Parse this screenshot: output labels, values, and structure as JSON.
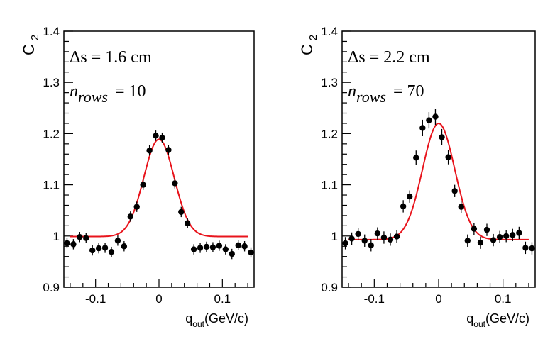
{
  "colors": {
    "fit": "#e8141c",
    "marker": "#000000",
    "frame": "#000000"
  },
  "chart_data": [
    {
      "type": "scatter",
      "title": "",
      "ylabel_main": "C",
      "ylabel_sub": "2",
      "xlabel_main": "q",
      "xlabel_sub": "out",
      "xlabel_unit": "(GeV/c)",
      "annotation_line1": "Δs = 1.6 cm",
      "annotation_n_main": "n",
      "annotation_n_sub": "rows",
      "annotation_n_value": "= 10",
      "xlim": [
        -0.15,
        0.15
      ],
      "ylim": [
        0.9,
        1.4
      ],
      "xticks": [
        -0.1,
        0,
        0.1
      ],
      "xtick_labels": [
        "-0.1",
        "0",
        "0.1"
      ],
      "yticks": [
        0.9,
        1.0,
        1.1,
        1.2,
        1.3,
        1.4
      ],
      "ytick_labels": [
        "0.9",
        "1",
        "1.1",
        "1.2",
        "1.3",
        "1.4"
      ],
      "series": [
        {
          "name": "data",
          "x": [
            -0.145,
            -0.135,
            -0.125,
            -0.115,
            -0.105,
            -0.095,
            -0.085,
            -0.075,
            -0.065,
            -0.055,
            -0.045,
            -0.035,
            -0.025,
            -0.015,
            -0.005,
            0.005,
            0.015,
            0.025,
            0.035,
            0.045,
            0.055,
            0.065,
            0.075,
            0.085,
            0.095,
            0.105,
            0.115,
            0.125,
            0.135,
            0.145
          ],
          "y": [
            0.986,
            0.984,
            0.998,
            0.996,
            0.972,
            0.976,
            0.977,
            0.969,
            0.991,
            0.98,
            1.038,
            1.057,
            1.1,
            1.167,
            1.196,
            1.192,
            1.168,
            1.103,
            1.047,
            1.025,
            0.974,
            0.977,
            0.979,
            0.978,
            0.981,
            0.974,
            0.965,
            0.982,
            0.98,
            0.968
          ],
          "yerr": [
            0.01,
            0.01,
            0.01,
            0.01,
            0.01,
            0.01,
            0.01,
            0.01,
            0.01,
            0.01,
            0.01,
            0.01,
            0.01,
            0.01,
            0.01,
            0.01,
            0.01,
            0.01,
            0.01,
            0.01,
            0.01,
            0.01,
            0.01,
            0.01,
            0.01,
            0.01,
            0.01,
            0.01,
            0.01,
            0.01
          ]
        },
        {
          "name": "fit",
          "model": "gaussian",
          "baseline": 0.999,
          "amplitude": 0.19,
          "mean": 0.0,
          "sigma": 0.024,
          "x_range": [
            -0.14,
            0.14
          ]
        }
      ]
    },
    {
      "type": "scatter",
      "title": "",
      "ylabel_main": "C",
      "ylabel_sub": "2",
      "xlabel_main": "q",
      "xlabel_sub": "out",
      "xlabel_unit": "(GeV/c)",
      "annotation_line1": "Δs = 2.2 cm",
      "annotation_n_main": "n",
      "annotation_n_sub": "rows",
      "annotation_n_value": "= 70",
      "xlim": [
        -0.15,
        0.15
      ],
      "ylim": [
        0.9,
        1.4
      ],
      "xticks": [
        -0.1,
        0,
        0.1
      ],
      "xtick_labels": [
        "-0.1",
        "0",
        "0.1"
      ],
      "yticks": [
        0.9,
        1.0,
        1.1,
        1.2,
        1.3,
        1.4
      ],
      "ytick_labels": [
        "0.9",
        "1",
        "1.1",
        "1.2",
        "1.3",
        "1.4"
      ],
      "series": [
        {
          "name": "data",
          "x": [
            -0.145,
            -0.135,
            -0.125,
            -0.115,
            -0.105,
            -0.095,
            -0.085,
            -0.075,
            -0.065,
            -0.055,
            -0.045,
            -0.035,
            -0.025,
            -0.015,
            -0.005,
            0.005,
            0.015,
            0.025,
            0.035,
            0.045,
            0.055,
            0.065,
            0.075,
            0.085,
            0.095,
            0.105,
            0.115,
            0.125,
            0.135,
            0.145
          ],
          "y": [
            0.986,
            0.995,
            1.004,
            0.991,
            0.982,
            1.005,
            0.997,
            0.993,
            0.999,
            1.058,
            1.077,
            1.153,
            1.211,
            1.226,
            1.233,
            1.193,
            1.154,
            1.088,
            1.057,
            0.991,
            1.014,
            0.987,
            1.012,
            0.992,
            0.998,
            1.0,
            1.002,
            1.006,
            0.977,
            0.976
          ],
          "yerr": [
            0.012,
            0.012,
            0.012,
            0.012,
            0.012,
            0.012,
            0.012,
            0.012,
            0.012,
            0.012,
            0.012,
            0.014,
            0.016,
            0.016,
            0.016,
            0.016,
            0.014,
            0.012,
            0.012,
            0.012,
            0.012,
            0.012,
            0.012,
            0.012,
            0.012,
            0.012,
            0.012,
            0.012,
            0.012,
            0.012
          ]
        },
        {
          "name": "fit",
          "model": "gaussian",
          "baseline": 0.993,
          "amplitude": 0.227,
          "mean": 0.0,
          "sigma": 0.025,
          "x_range": [
            -0.14,
            0.14
          ]
        }
      ]
    }
  ]
}
